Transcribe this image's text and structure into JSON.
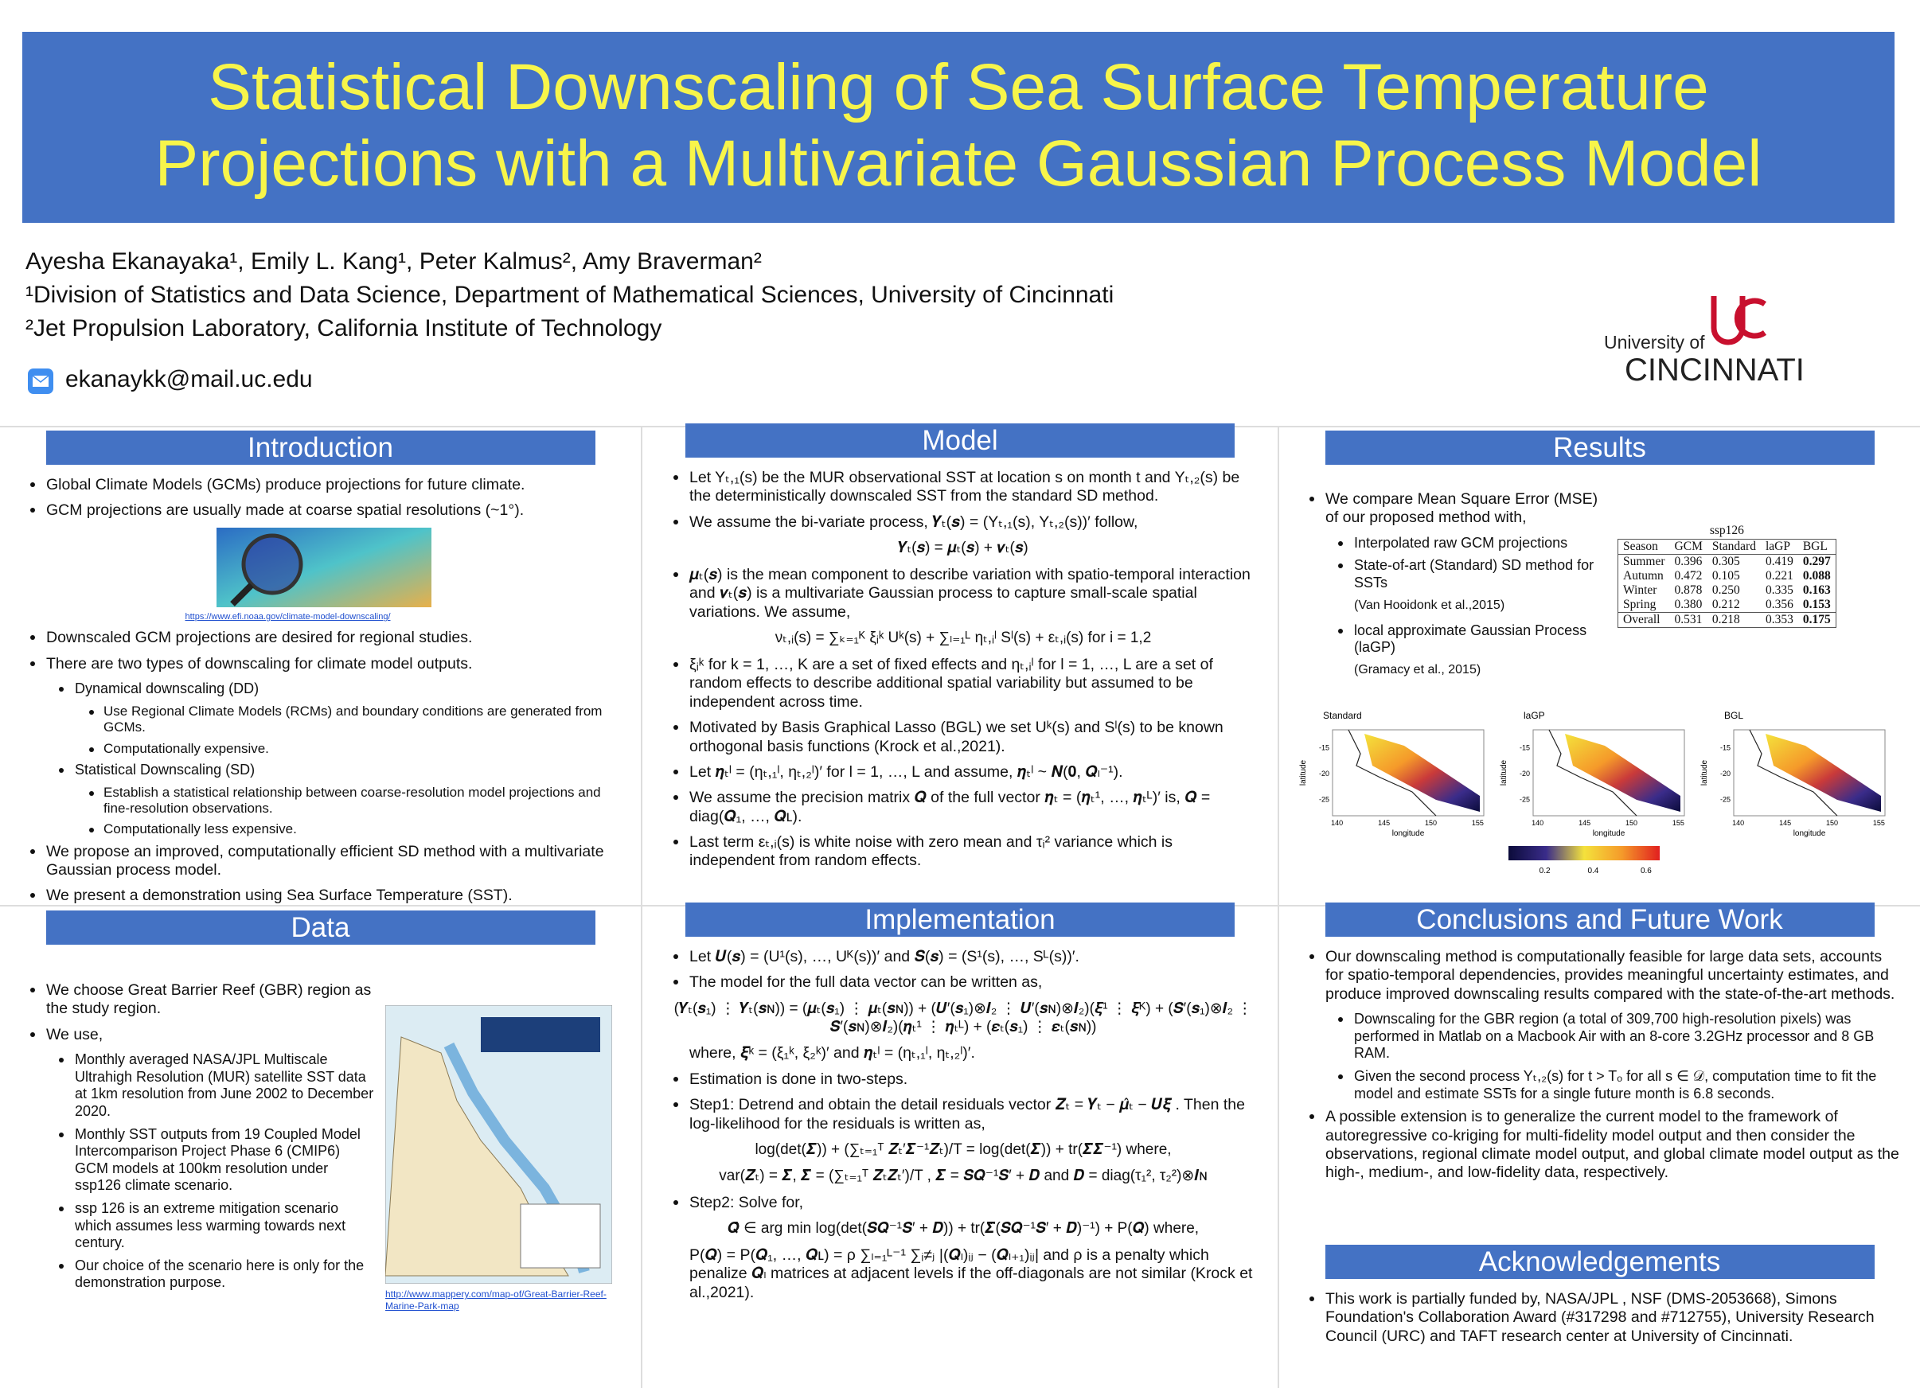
{
  "header": {
    "title": [
      "Statistical Downscaling of Sea Surface Temperature",
      "Projections with a Multivariate Gaussian Process Model"
    ],
    "authors": "Ayesha Ekanayaka¹, Emily L. Kang¹, Peter Kalmus², Amy Braverman²",
    "affiliations": [
      "¹Division of Statistics and Data Science, Department of Mathematical Sciences, University of Cincinnati",
      "²Jet Propulsion Laboratory, California Institute of Technology"
    ],
    "email": "ekanaykk@mail.uc.edu",
    "logo": {
      "university_of": "University of",
      "name": "CINCINNATI"
    }
  },
  "sections": {
    "introduction": {
      "heading": "Introduction",
      "items": [
        {
          "kind": "bullet",
          "text": "Global Climate Models (GCMs) produce projections for future climate."
        },
        {
          "kind": "bullet",
          "text": "GCM projections are usually made at coarse spatial resolutions (~1°)."
        },
        {
          "kind": "figure",
          "caption": "https://www.efi.noaa.gov/climate-model-downscaling/"
        },
        {
          "kind": "bullet",
          "text": "Downscaled GCM projections are desired for regional studies."
        },
        {
          "kind": "bullet",
          "text": "There are two types of downscaling for climate model outputs."
        },
        {
          "kind": "sub",
          "text": "Dynamical downscaling (DD)"
        },
        {
          "kind": "subsub",
          "text": "Use Regional Climate Models (RCMs) and boundary conditions are generated from GCMs."
        },
        {
          "kind": "subsub",
          "text": "Computationally expensive."
        },
        {
          "kind": "sub",
          "text": "Statistical Downscaling (SD)"
        },
        {
          "kind": "subsub",
          "text": "Establish a statistical relationship between coarse-resolution model projections and fine-resolution observations."
        },
        {
          "kind": "subsub",
          "text": "Computationally less expensive."
        },
        {
          "kind": "bullet",
          "text": "We propose an improved, computationally efficient SD method with a multivariate Gaussian process model."
        },
        {
          "kind": "bullet",
          "text": "We present a demonstration using Sea Surface Temperature (SST)."
        }
      ]
    },
    "model": {
      "heading": "Model",
      "items": [
        {
          "kind": "bullet",
          "text": "Let Yₜ,₁(s) be the MUR observational SST at location s on month t and Yₜ,₂(s) be the deterministically downscaled SST from the standard SD method."
        },
        {
          "kind": "bullet",
          "text": "We assume the bi-variate process, 𝒀ₜ(𝒔) = (Yₜ,₁(s), Yₜ,₂(s))′ follow,"
        },
        {
          "kind": "eq",
          "text": "𝒀ₜ(𝒔) = 𝝁ₜ(𝒔) + 𝝂ₜ(𝒔)"
        },
        {
          "kind": "bullet",
          "text": "𝝁ₜ(𝒔) is the mean component to describe variation with spatio-temporal interaction and 𝝂ₜ(𝒔) is a multivariate Gaussian process to capture small-scale spatial variations.  We assume,"
        },
        {
          "kind": "eq",
          "text": "νₜ,ᵢ(s) = ∑ₖ₌₁ᴷ ξᵢᵏ Uᵏ(s) + ∑ₗ₌₁ᴸ ηₜ,ᵢˡ Sˡ(s) + εₜ,ᵢ(s) for i = 1,2"
        },
        {
          "kind": "bullet",
          "text": "ξᵢᵏ for k = 1, …, K are a set of fixed effects and ηₜ,ᵢˡ for l = 1, …, L are a set of random effects to describe additional spatial variability but assumed to be independent across time."
        },
        {
          "kind": "bullet",
          "text": "Motivated by Basis Graphical Lasso (BGL) we set Uᵏ(s) and Sˡ(s) to be known orthogonal basis functions (Krock et al.,2021)."
        },
        {
          "kind": "bullet",
          "text": "Let 𝜼ₜˡ = (ηₜ,₁ˡ, ηₜ,₂ˡ)′ for l = 1, …, L and assume, 𝜼ₜˡ ~ 𝑵(𝟎, 𝑸ₗ⁻¹)."
        },
        {
          "kind": "bullet",
          "text": "We assume the precision matrix 𝑸 of the full vector 𝜼ₜ = (𝜼ₜ¹, …, 𝜼ₜᴸ)′ is, 𝑸 = diag(𝑸₁, …, 𝑸ʟ)."
        },
        {
          "kind": "bullet",
          "text": "Last term εₜ,ᵢ(s) is white noise with zero mean and τᵢ² variance which is independent from random effects."
        }
      ]
    },
    "results": {
      "heading": "Results",
      "items": [
        {
          "kind": "bullet",
          "text": "We compare Mean Square Error (MSE) of our proposed method with,"
        },
        {
          "kind": "sub",
          "text": "Interpolated raw GCM projections"
        },
        {
          "kind": "sub",
          "text": "State-of-art (Standard) SD method for SSTs"
        },
        {
          "kind": "note",
          "text": "(Van Hooidonk et al.,2015)"
        },
        {
          "kind": "sub",
          "text": "local approximate Gaussian Process (laGP)"
        },
        {
          "kind": "note",
          "text": "(Gramacy et al., 2015)"
        }
      ],
      "table": {
        "caption": "ssp126",
        "columns": [
          "Season",
          "GCM",
          "Standard",
          "laGP",
          "BGL"
        ],
        "rows": [
          [
            "Summer",
            "0.396",
            "0.305",
            "0.419",
            "0.297"
          ],
          [
            "Autumn",
            "0.472",
            "0.105",
            "0.221",
            "0.088"
          ],
          [
            "Winter",
            "0.878",
            "0.250",
            "0.335",
            "0.163"
          ],
          [
            "Spring",
            "0.380",
            "0.212",
            "0.356",
            "0.153"
          ],
          [
            "Overall",
            "0.531",
            "0.218",
            "0.353",
            "0.175"
          ]
        ]
      },
      "maps": {
        "panels": [
          "Standard",
          "laGP",
          "BGL"
        ],
        "x_label": "longitude",
        "y_label": "latitude",
        "x_ticks": [
          "140",
          "145",
          "150",
          "155"
        ],
        "y_ticks": [
          "-15",
          "-20",
          "-25"
        ],
        "colorbar_ticks": [
          "0.2",
          "0.4",
          "0.6"
        ]
      }
    },
    "data": {
      "heading": "Data",
      "items": [
        {
          "kind": "bullet",
          "text": "We choose Great Barrier Reef (GBR) region as the study region."
        },
        {
          "kind": "bullet",
          "text": "We use,"
        },
        {
          "kind": "sub",
          "text": "Monthly averaged NASA/JPL Multiscale Ultrahigh Resolution (MUR) satellite SST data at 1km resolution from June 2002 to December 2020."
        },
        {
          "kind": "sub",
          "text": "Monthly SST outputs from 19 Coupled Model Intercomparison Project Phase 6 (CMIP6) GCM models  at 100km resolution under ssp126 climate scenario."
        },
        {
          "kind": "sub",
          "text": "ssp 126 is an extreme mitigation scenario which assumes less warming towards next century."
        },
        {
          "kind": "sub",
          "text": "Our choice of the scenario here is only for the demonstration purpose."
        }
      ],
      "side_figure": {
        "caption": "http://www.mappery.com/map-of/Great-Barrier-Reef-Marine-Park-map"
      }
    },
    "implementation": {
      "heading": "Implementation",
      "items": [
        {
          "kind": "bullet",
          "text": "Let 𝑼(𝒔) = (U¹(s), …, Uᴷ(s))′ and 𝑺(𝒔) = (S¹(s), …, Sᴸ(s))′."
        },
        {
          "kind": "bullet",
          "text": "The model for the full data vector can be written as,"
        },
        {
          "kind": "eq",
          "text": "(𝒀ₜ(𝒔₁) ⋮ 𝒀ₜ(𝒔ɴ)) = (𝝁ₜ(𝒔₁) ⋮ 𝝁ₜ(𝒔ɴ)) + (𝑼′(𝒔₁)⊗𝑰₂ ⋮ 𝑼′(𝒔ɴ)⊗𝑰₂)(𝝃¹ ⋮ 𝝃ᴷ) + (𝑺′(𝒔₁)⊗𝑰₂ ⋮ 𝑺′(𝒔ɴ)⊗𝑰₂)(𝜼ₜ¹ ⋮ 𝜼ₜᴸ) + (𝜺ₜ(𝒔₁) ⋮ 𝜺ₜ(𝒔ɴ))"
        },
        {
          "kind": "plain",
          "text": "where, 𝝃ᵏ = (ξ₁ᵏ, ξ₂ᵏ)′ and 𝜼ₜˡ = (ηₜ,₁ˡ, ηₜ,₂ˡ)′."
        },
        {
          "kind": "bullet",
          "text": "Estimation is done in two-steps."
        },
        {
          "kind": "bullet",
          "text": "Step1: Detrend and obtain the detail residuals vector 𝒁ₜ = 𝒀ₜ − 𝝁̂ₜ − 𝑼𝝃̂ . Then the log-likelihood for the residuals is written as,"
        },
        {
          "kind": "eq",
          "text": "log(det(𝜮)) + (∑ₜ₌₁ᵀ 𝒁ₜ′𝜮⁻¹𝒁ₜ)/T = log(det(𝜮)) + tr(𝜮̂𝜮⁻¹) where,"
        },
        {
          "kind": "eq",
          "text": "var(𝒁ₜ) = 𝜮, 𝜮̂ = (∑ₜ₌₁ᵀ 𝒁ₜ𝒁ₜ′)/T , 𝜮 = 𝑺𝑸⁻¹𝑺′ + 𝑫 and 𝑫 = diag(τ₁², τ₂²)⊗𝑰ɴ"
        },
        {
          "kind": "bullet",
          "text": "Step2: Solve for,"
        },
        {
          "kind": "eq",
          "text": "𝑸̂ ∈ arg min log(det(𝑺𝑸⁻¹𝑺′ + 𝑫)) + tr(𝜮̂(𝑺𝑸⁻¹𝑺′ + 𝑫)⁻¹) + P(𝑸) where,"
        },
        {
          "kind": "plain",
          "text": "P(𝑸) = P(𝑸₁, …, 𝑸ʟ) = ρ ∑ₗ₌₁ᴸ⁻¹ ∑ᵢ≠ⱼ |(𝑸ₗ)ᵢⱼ − (𝑸ₗ₊₁)ᵢⱼ| and ρ is a penalty which penalize 𝑸ₗ matrices at adjacent levels if the off-diagonals are not similar (Krock et al.,2021)."
        }
      ]
    },
    "conclusions": {
      "heading": "Conclusions and Future Work",
      "items": [
        {
          "kind": "bullet",
          "text": "Our downscaling method is computationally feasible for large data sets, accounts for spatio-temporal dependencies, provides meaningful uncertainty estimates, and produce improved downscaling results compared with the state-of-the-art methods."
        },
        {
          "kind": "sub",
          "text": "Downscaling for the GBR region (a total of 309,700 high-resolution pixels) was performed in Matlab on a Macbook Air with an 8-core 3.2GHz processor and 8 GB RAM."
        },
        {
          "kind": "sub",
          "text": "Given the second process Yₜ,₂(s) for t > Tₒ for all s ∈ 𝒟,  computation time to fit the model and estimate SSTs for a single future month is 6.8 seconds."
        },
        {
          "kind": "bullet",
          "text": "A possible extension is to generalize the current model to the framework of autoregressive co-kriging for multi-fidelity model output and then consider the observations, regional climate model output, and global climate model output as the high-, medium-, and low-fidelity data, respectively."
        }
      ]
    },
    "acknowledgements": {
      "heading": "Acknowledgements",
      "items": [
        {
          "kind": "bullet",
          "text": "This work is partially funded by, NASA/JPL , NSF (DMS-2053668), Simons Foundation's Collaboration Award (#317298 and #712755), University Research Council (URC) and TAFT research center at University of Cincinnati."
        }
      ]
    }
  }
}
